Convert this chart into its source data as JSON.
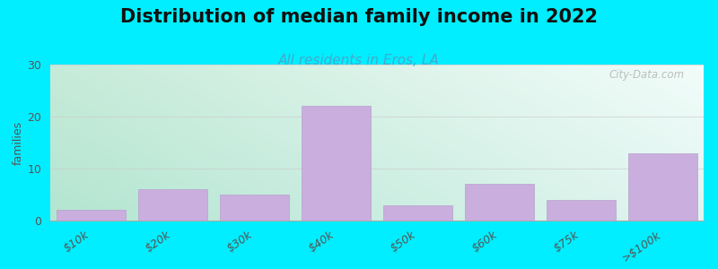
{
  "title": "Distribution of median family income in 2022",
  "subtitle": "All residents in Eros, LA",
  "categories": [
    "$10k",
    "$20k",
    "$30k",
    "$40k",
    "$50k",
    "$60k",
    "$75k",
    ">$100k"
  ],
  "values": [
    2,
    6,
    5,
    22,
    3,
    7,
    4,
    13
  ],
  "bar_color": "#c9aede",
  "bar_edge_color": "#b8a0cc",
  "ylim": [
    0,
    30
  ],
  "yticks": [
    0,
    10,
    20,
    30
  ],
  "ylabel": "families",
  "background_outer": "#00eeff",
  "plot_bg_topleft": "#c8ead8",
  "plot_bg_topright": "#f0f8f8",
  "plot_bg_bottomleft": "#a8ddc8",
  "plot_bg_bottomright": "#e8f4f4",
  "title_fontsize": 15,
  "subtitle_fontsize": 11,
  "watermark_text": "City-Data.com",
  "grid_color": "#cccccc"
}
